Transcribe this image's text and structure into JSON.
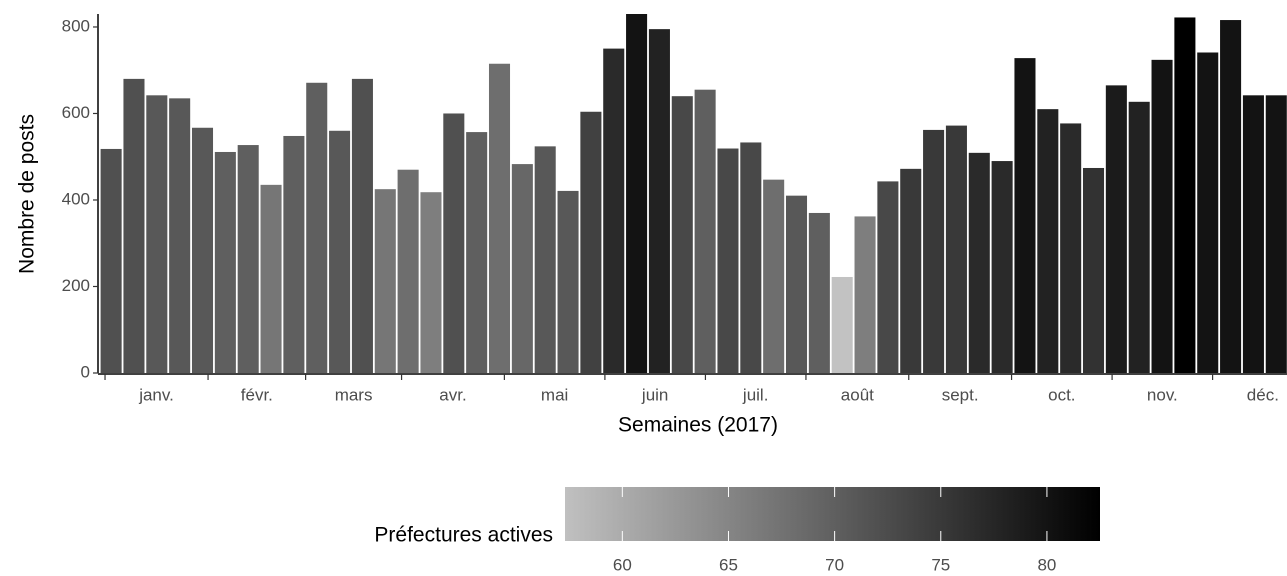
{
  "chart_data": {
    "type": "bar",
    "xlabel": "Semaines (2017)",
    "ylabel": "Nombre de posts",
    "values": [
      518,
      680,
      642,
      635,
      567,
      511,
      527,
      435,
      548,
      671,
      560,
      680,
      425,
      470,
      418,
      600,
      557,
      715,
      483,
      524,
      421,
      604,
      750,
      830,
      795,
      640,
      655,
      519,
      533,
      447,
      410,
      370,
      222,
      362,
      443,
      472,
      562,
      572,
      509,
      490,
      728,
      610,
      577,
      474,
      665,
      627,
      724,
      822,
      741,
      816,
      642,
      642
    ],
    "fill_values": [
      72,
      72,
      71,
      71,
      71,
      70,
      70,
      67,
      70,
      70,
      71,
      72,
      67,
      68,
      66,
      72,
      70,
      68,
      69,
      71,
      71,
      74,
      77,
      80,
      78,
      73,
      70,
      73,
      73,
      68,
      71,
      70,
      57,
      66,
      73,
      75,
      75,
      75,
      77,
      77,
      80,
      78,
      77,
      76,
      79,
      78,
      80,
      83,
      80,
      80,
      80,
      80
    ],
    "fill_scale": {
      "title": "Préfectures actives",
      "low": "#c0c0c0",
      "high": "#000000",
      "limits": [
        57.3,
        82.5
      ],
      "ticks": [
        60,
        65,
        70,
        75,
        80
      ]
    },
    "months": [
      "janv.",
      "févr.",
      "mars",
      "avr.",
      "mai",
      "juin",
      "juil.",
      "août",
      "sept.",
      "oct.",
      "nov.",
      "déc."
    ],
    "month_starts": [
      0.22,
      4.73,
      9.0,
      13.2,
      17.7,
      22.1,
      26.5,
      30.9,
      35.4,
      39.9,
      44.3,
      48.7
    ],
    "xlim": [
      0,
      52
    ],
    "ylim": [
      0,
      830
    ],
    "yticks": [
      0,
      200,
      400,
      600,
      800
    ]
  }
}
